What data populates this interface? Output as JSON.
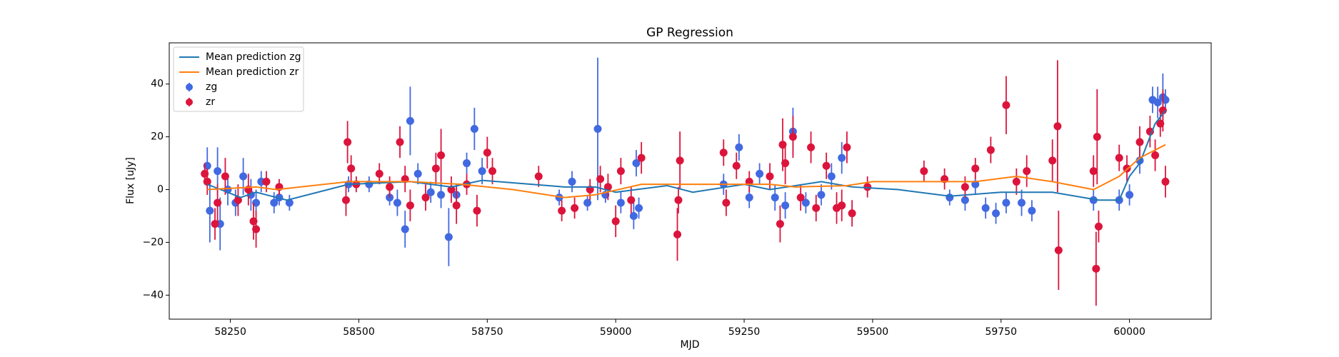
{
  "chart_data": {
    "type": "errorbar",
    "title": "GP Regression",
    "xlabel": "MJD",
    "ylabel": "Flux [uJy]",
    "xlim": [
      58131,
      60159
    ],
    "ylim": [
      -49.1,
      55.6
    ],
    "xticks": [
      58250,
      58500,
      58750,
      59000,
      59250,
      59500,
      59750,
      60000
    ],
    "yticks": [
      {
        "value": -40,
        "label": "−40"
      },
      {
        "value": -20,
        "label": "−20"
      },
      0,
      20,
      40
    ],
    "legend": "upper left",
    "series": [
      {
        "name": "Mean prediction zg",
        "type": "line",
        "color": "#1f77b4",
        "x": [
          58205,
          58270,
          58300,
          58360,
          58480,
          58600,
          58680,
          58740,
          58900,
          58960,
          59000,
          59100,
          59150,
          59250,
          59300,
          59400,
          59460,
          59550,
          59650,
          59750,
          59850,
          59940,
          59980,
          60000,
          60020,
          60050,
          60070
        ],
        "values": [
          2,
          -3,
          -1,
          -4,
          2,
          3,
          1,
          3.5,
          1,
          1,
          -1,
          1.5,
          -1,
          2,
          0,
          3,
          1,
          0,
          -2.5,
          -1,
          -1,
          -4,
          -4,
          5,
          10,
          25,
          30
        ]
      },
      {
        "name": "Mean prediction zr",
        "type": "line",
        "color": "#ff7f0e",
        "x": [
          58205,
          58300,
          58340,
          58480,
          58600,
          58700,
          58800,
          58900,
          58960,
          59050,
          59200,
          59300,
          59350,
          59450,
          59500,
          59600,
          59700,
          59780,
          59850,
          59930,
          59980,
          60020,
          60070
        ],
        "values": [
          0,
          1,
          0,
          3,
          3,
          2,
          0,
          -3,
          -2,
          2,
          2,
          2,
          1,
          1.5,
          3,
          3,
          3,
          5,
          3,
          0,
          5,
          12,
          17
        ]
      },
      {
        "name": "zg",
        "type": "errorbar",
        "color": "#4169e1",
        "x": [
          58205,
          58210,
          58225,
          58230,
          58245,
          58260,
          58275,
          58290,
          58300,
          58310,
          58335,
          58345,
          58365,
          58480,
          58520,
          58560,
          58575,
          58590,
          58600,
          58615,
          58640,
          58660,
          58675,
          58690,
          58710,
          58725,
          58740,
          58890,
          58915,
          58945,
          58965,
          58980,
          59010,
          59035,
          59040,
          59045,
          59210,
          59240,
          59260,
          59280,
          59310,
          59330,
          59345,
          59370,
          59400,
          59420,
          59440,
          59650,
          59680,
          59700,
          59720,
          59740,
          59760,
          59790,
          59810,
          59930,
          59980,
          60000,
          60020,
          60045,
          60055,
          60065,
          60070
        ],
        "values": [
          9,
          -8,
          7,
          -13,
          0,
          -5,
          5,
          -2,
          -5,
          3,
          -5,
          -3,
          -5,
          2,
          2,
          -3,
          -5,
          -15,
          26,
          6,
          -1,
          -2,
          -18,
          -2,
          10,
          23,
          7,
          -3,
          3,
          -5,
          23,
          -2,
          -5,
          -10,
          10,
          -7,
          2,
          16,
          -3,
          6,
          -3,
          -6,
          22,
          -5,
          -2,
          5,
          12,
          -3,
          -4,
          2,
          -7,
          -9,
          -5,
          -5,
          -8,
          -4,
          -4,
          -2,
          11,
          34,
          33,
          35,
          34
        ],
        "errors": [
          7,
          12,
          9,
          10,
          6,
          5,
          7,
          6,
          5,
          4,
          4,
          3,
          3,
          3,
          3,
          3,
          5,
          7,
          13,
          4,
          4,
          5,
          11,
          4,
          4,
          8,
          5,
          3,
          4,
          3,
          27,
          3,
          4,
          5,
          5,
          4,
          4,
          5,
          4,
          4,
          5,
          5,
          9,
          4,
          4,
          5,
          6,
          3,
          4,
          4,
          4,
          4,
          4,
          5,
          4,
          4,
          4,
          4,
          5,
          5,
          6,
          9,
          4
        ]
      },
      {
        "name": "zr",
        "type": "errorbar",
        "color": "#dc143c",
        "x": [
          58200,
          58205,
          58220,
          58225,
          58240,
          58265,
          58285,
          58295,
          58300,
          58320,
          58345,
          58475,
          58478,
          58485,
          58495,
          58540,
          58560,
          58580,
          58590,
          58600,
          58630,
          58650,
          58660,
          58680,
          58690,
          58710,
          58730,
          58750,
          58760,
          58850,
          58895,
          58920,
          58950,
          58970,
          58985,
          59000,
          59010,
          59030,
          59050,
          59120,
          59125,
          59122,
          59210,
          59215,
          59235,
          59260,
          59300,
          59320,
          59325,
          59330,
          59345,
          59360,
          59380,
          59390,
          59410,
          59430,
          59440,
          59450,
          59460,
          59490,
          59600,
          59640,
          59680,
          59700,
          59730,
          59760,
          59780,
          59800,
          59850,
          59860,
          59862,
          59930,
          59935,
          59937,
          59940,
          59980,
          59995,
          60020,
          60040,
          60050,
          60060,
          60065,
          60070
        ],
        "values": [
          6,
          3,
          -13,
          -5,
          5,
          -4,
          0,
          -12,
          -15,
          3,
          1,
          -4,
          18,
          8,
          2,
          6,
          1,
          18,
          4,
          -6,
          -3,
          8,
          13,
          0,
          -6,
          2,
          -8,
          14,
          7,
          5,
          -8,
          -7,
          0,
          4,
          1,
          -12,
          7,
          -4,
          12,
          -17,
          11,
          -4,
          14,
          -5,
          9,
          3,
          5,
          -13,
          17,
          10,
          20,
          -3,
          16,
          -7,
          9,
          -7,
          -6,
          16,
          -9,
          1,
          7,
          4,
          1,
          8,
          15,
          32,
          3,
          7,
          11,
          24,
          -23,
          7,
          -30,
          20,
          -14,
          12,
          8,
          18,
          22,
          13,
          25,
          30,
          3
        ],
        "errors": [
          4,
          5,
          6,
          7,
          7,
          6,
          6,
          7,
          7,
          4,
          3,
          6,
          8,
          5,
          3,
          4,
          4,
          6,
          5,
          6,
          5,
          6,
          10,
          5,
          7,
          4,
          6,
          6,
          5,
          4,
          4,
          4,
          4,
          5,
          5,
          6,
          5,
          5,
          6,
          10,
          11,
          5,
          5,
          5,
          5,
          4,
          5,
          7,
          10,
          8,
          8,
          5,
          6,
          5,
          5,
          6,
          6,
          6,
          5,
          4,
          4,
          4,
          4,
          4,
          5,
          11,
          5,
          6,
          8,
          25,
          15,
          6,
          14,
          18,
          6,
          5,
          5,
          6,
          6,
          6,
          5,
          8,
          6
        ]
      }
    ]
  }
}
